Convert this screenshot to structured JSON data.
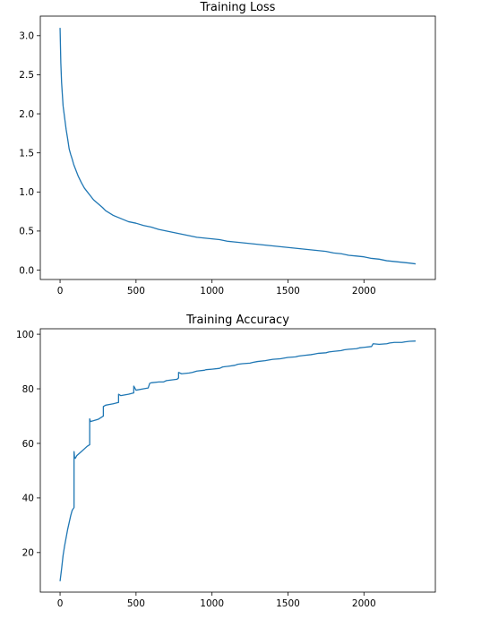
{
  "chart_data": [
    {
      "type": "line",
      "title": "Training Loss",
      "xlabel": "",
      "ylabel": "",
      "xlim": [
        -130,
        2470
      ],
      "ylim": [
        -0.12,
        3.25
      ],
      "xticks": [
        0,
        500,
        1000,
        1500,
        2000
      ],
      "yticks": [
        0.0,
        0.5,
        1.0,
        1.5,
        2.0,
        2.5,
        3.0
      ],
      "xtick_labels": [
        "0",
        "500",
        "1000",
        "1500",
        "2000"
      ],
      "ytick_labels": [
        "0.0",
        "0.5",
        "1.0",
        "1.5",
        "2.0",
        "2.5",
        "3.0"
      ],
      "grid": false,
      "color": "#1f77b4",
      "series": [
        {
          "x": [
            0,
            5,
            10,
            20,
            30,
            40,
            50,
            60,
            70,
            80,
            90,
            100,
            120,
            140,
            160,
            180,
            200,
            220,
            250,
            280,
            300,
            350,
            400,
            450,
            500,
            550,
            600,
            650,
            700,
            750,
            800,
            850,
            900,
            950,
            1000,
            1050,
            1100,
            1150,
            1200,
            1250,
            1300,
            1350,
            1400,
            1450,
            1500,
            1550,
            1600,
            1650,
            1700,
            1750,
            1800,
            1850,
            1900,
            1950,
            2000,
            2050,
            2100,
            2150,
            2200,
            2250,
            2300,
            2340
          ],
          "y": [
            3.1,
            2.65,
            2.4,
            2.1,
            1.95,
            1.8,
            1.68,
            1.55,
            1.48,
            1.42,
            1.35,
            1.3,
            1.2,
            1.12,
            1.05,
            1.0,
            0.95,
            0.9,
            0.85,
            0.8,
            0.76,
            0.7,
            0.66,
            0.62,
            0.6,
            0.57,
            0.55,
            0.52,
            0.5,
            0.48,
            0.46,
            0.44,
            0.42,
            0.41,
            0.4,
            0.39,
            0.37,
            0.36,
            0.35,
            0.34,
            0.33,
            0.32,
            0.31,
            0.3,
            0.29,
            0.28,
            0.27,
            0.26,
            0.25,
            0.24,
            0.22,
            0.21,
            0.19,
            0.18,
            0.17,
            0.15,
            0.14,
            0.12,
            0.11,
            0.1,
            0.09,
            0.08
          ]
        }
      ]
    },
    {
      "type": "line",
      "title": "Training Accuracy",
      "xlabel": "",
      "ylabel": "",
      "xlim": [
        -130,
        2470
      ],
      "ylim": [
        5.5,
        102
      ],
      "xticks": [
        0,
        500,
        1000,
        1500,
        2000
      ],
      "yticks": [
        20,
        40,
        60,
        80,
        100
      ],
      "xtick_labels": [
        "0",
        "500",
        "1000",
        "1500",
        "2000"
      ],
      "ytick_labels": [
        "20",
        "40",
        "60",
        "80",
        "100"
      ],
      "grid": false,
      "color": "#1f77b4",
      "series": [
        {
          "x": [
            0,
            10,
            20,
            30,
            40,
            50,
            60,
            70,
            80,
            92,
            92,
            95,
            100,
            110,
            120,
            140,
            160,
            180,
            195,
            195,
            200,
            220,
            250,
            270,
            285,
            285,
            300,
            330,
            350,
            370,
            385,
            385,
            400,
            450,
            470,
            485,
            485,
            500,
            550,
            580,
            590,
            600,
            650,
            680,
            700,
            770,
            780,
            780,
            800,
            850,
            870,
            900,
            950,
            960,
            1000,
            1050,
            1070,
            1100,
            1150,
            1170,
            1200,
            1250,
            1270,
            1300,
            1350,
            1370,
            1400,
            1450,
            1470,
            1500,
            1550,
            1570,
            1600,
            1650,
            1670,
            1700,
            1750,
            1770,
            1800,
            1850,
            1870,
            1900,
            1950,
            1970,
            2000,
            2050,
            2060,
            2100,
            2150,
            2170,
            2200,
            2250,
            2270,
            2300,
            2340
          ],
          "y": [
            9.5,
            14.0,
            19.0,
            22.5,
            25.5,
            28.5,
            31.0,
            33.5,
            35.5,
            36.5,
            57.0,
            55.0,
            54.5,
            55.5,
            56.0,
            57.0,
            58.0,
            59.0,
            59.5,
            69.0,
            68.0,
            68.3,
            68.8,
            69.5,
            70.0,
            73.5,
            74.0,
            74.3,
            74.5,
            74.8,
            75.0,
            78.0,
            77.5,
            78.0,
            78.3,
            78.5,
            81.0,
            79.5,
            80.0,
            80.3,
            82.0,
            82.2,
            82.5,
            82.5,
            83.0,
            83.5,
            84.0,
            86.0,
            85.5,
            85.8,
            86.0,
            86.5,
            86.8,
            87.0,
            87.2,
            87.5,
            88.0,
            88.2,
            88.6,
            89.0,
            89.2,
            89.4,
            89.7,
            90.0,
            90.3,
            90.5,
            90.8,
            91.0,
            91.2,
            91.5,
            91.7,
            92.0,
            92.2,
            92.5,
            92.7,
            93.0,
            93.2,
            93.5,
            93.7,
            94.0,
            94.3,
            94.5,
            94.7,
            95.0,
            95.2,
            95.5,
            96.5,
            96.3,
            96.5,
            96.8,
            97.0,
            97.0,
            97.2,
            97.4,
            97.5
          ]
        }
      ]
    }
  ]
}
